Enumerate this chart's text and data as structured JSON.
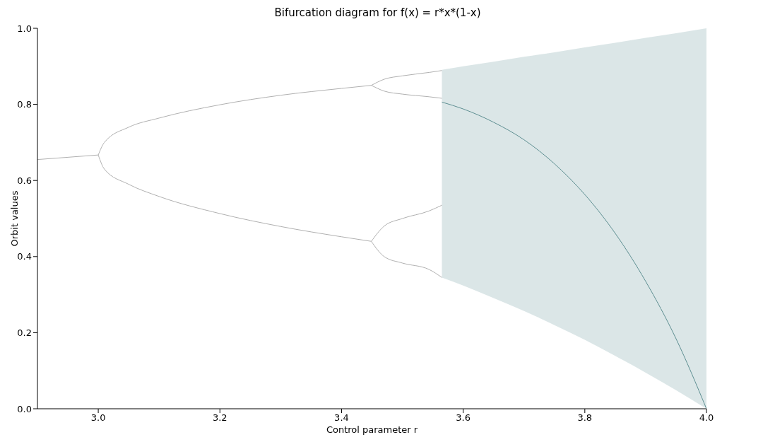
{
  "chart_data": {
    "type": "line",
    "title": "Bifurcation diagram for f(x) = r*x*(1-x)",
    "xlabel": "Control parameter r",
    "ylabel": "Orbit values",
    "xlim": [
      2.9,
      4.0
    ],
    "ylim": [
      0,
      1
    ],
    "xticks": [
      {
        "value": 3,
        "label": "3.0"
      },
      3.2,
      3.4,
      3.6,
      3.8,
      {
        "value": 4,
        "label": "4.0"
      }
    ],
    "yticks": [
      {
        "value": 0,
        "label": "0.0"
      },
      0.2,
      0.4,
      0.6,
      0.8,
      {
        "value": 1,
        "label": "1.0"
      }
    ],
    "series": [
      {
        "type": "line",
        "color": "#b0b0b0",
        "x": [
          2.9,
          2.95,
          3.0
        ],
        "values": [
          0.655,
          0.661,
          0.667
        ]
      },
      {
        "type": "line",
        "color": "#b0b0b0",
        "x": [
          3.0,
          3.01,
          3.05,
          3.1,
          3.2,
          3.3,
          3.4,
          3.449
        ],
        "values": [
          0.667,
          0.7,
          0.74,
          0.764,
          0.799,
          0.824,
          0.842,
          0.85
        ]
      },
      {
        "type": "line",
        "color": "#b0b0b0",
        "x": [
          3.0,
          3.01,
          3.05,
          3.1,
          3.2,
          3.3,
          3.4,
          3.449
        ],
        "values": [
          0.667,
          0.63,
          0.59,
          0.558,
          0.513,
          0.479,
          0.452,
          0.44
        ]
      },
      {
        "type": "line",
        "color": "#b0b0b0",
        "x": [
          3.449,
          3.47,
          3.5,
          3.544,
          3.565
        ],
        "values": [
          0.85,
          0.866,
          0.875,
          0.884,
          0.889
        ]
      },
      {
        "type": "line",
        "color": "#b0b0b0",
        "x": [
          3.449,
          3.47,
          3.5,
          3.544,
          3.565
        ],
        "values": [
          0.85,
          0.835,
          0.827,
          0.82,
          0.816
        ]
      },
      {
        "type": "line",
        "color": "#b0b0b0",
        "x": [
          3.449,
          3.47,
          3.5,
          3.544,
          3.565
        ],
        "values": [
          0.44,
          0.48,
          0.5,
          0.52,
          0.535
        ]
      },
      {
        "type": "line",
        "color": "#b0b0b0",
        "x": [
          3.449,
          3.47,
          3.5,
          3.544,
          3.565
        ],
        "values": [
          0.44,
          0.4,
          0.383,
          0.366,
          0.345
        ]
      },
      {
        "color": "#5d8e91",
        "x": [
          3.565,
          3.6,
          3.65,
          3.7,
          3.75,
          3.8,
          3.85,
          3.9,
          3.95,
          4.0
        ],
        "values": [
          0.806,
          0.788,
          0.753,
          0.707,
          0.644,
          0.563,
          0.461,
          0.335,
          0.184,
          0.0
        ],
        "upper": [
          0.891,
          0.9,
          0.912,
          0.925,
          0.937,
          0.95,
          0.962,
          0.975,
          0.987,
          1.0
        ],
        "lower": [
          0.345,
          0.324,
          0.291,
          0.257,
          0.22,
          0.181,
          0.139,
          0.095,
          0.049,
          0.0
        ]
      }
    ]
  }
}
